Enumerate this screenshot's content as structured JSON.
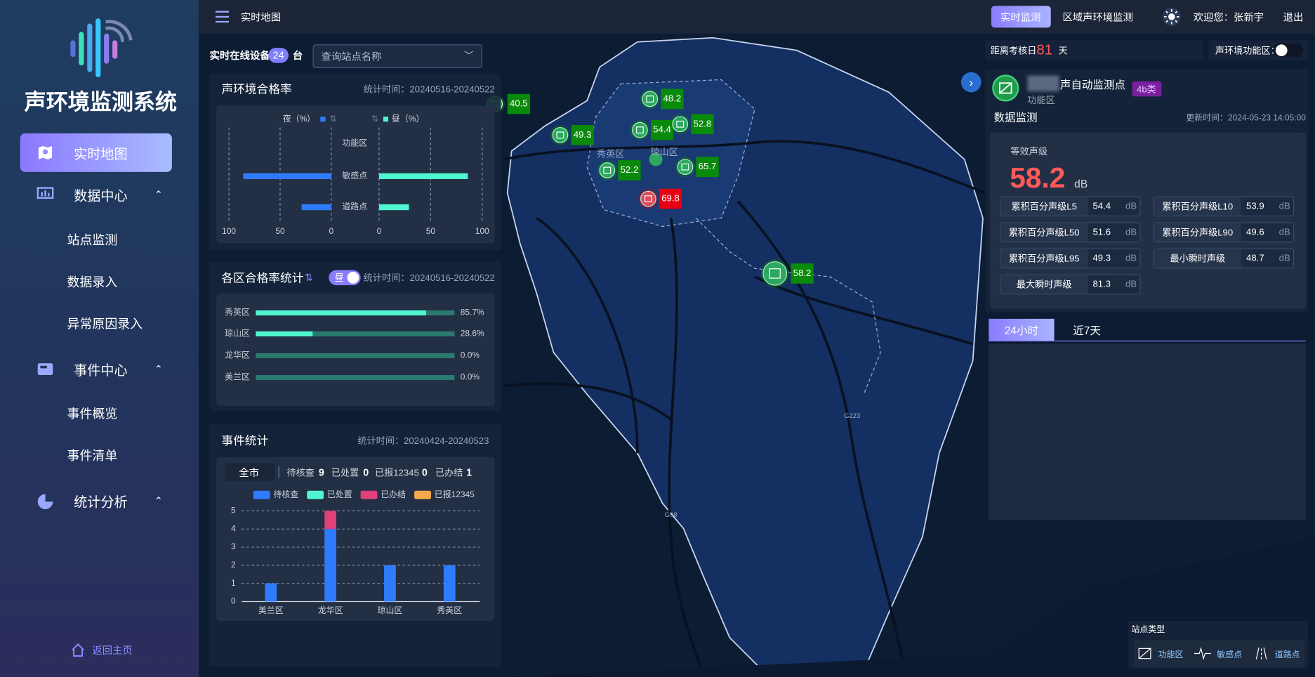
{
  "sidebar": {
    "title": "声环境监测系统",
    "menu": [
      "实时地图",
      "数据中心",
      "站点监测",
      "数据录入",
      "异常原因录入",
      "事件中心",
      "事件概览",
      "事件清单",
      "统计分析"
    ],
    "footer": "返回主页"
  },
  "topbar": {
    "page": "实时地图",
    "tabs": [
      "实时监测",
      "区域声环境监测"
    ],
    "welcome": "欢迎您：张新宇",
    "logout": "退出"
  },
  "online": {
    "label": "实时在线设备",
    "count": 24,
    "unit": "台",
    "search_placeholder": "查询站点名称"
  },
  "qualification_rate": {
    "title": "声环境合格率",
    "time": "统计时间：20240516-20240522",
    "chart": {
      "type": "bar",
      "orientation": "butterfly",
      "categories": [
        "功能区",
        "敏感点",
        "道路点"
      ],
      "series": [
        {
          "name": "夜（%）",
          "color": "#2f7bff",
          "values": [
            0,
            86,
            29
          ]
        },
        {
          "name": "昼（%）",
          "color": "#4ff5d0",
          "values": [
            0,
            86,
            29
          ]
        }
      ],
      "xlim": [
        0,
        100
      ],
      "xticks": [
        0,
        50,
        100
      ]
    }
  },
  "district_rate": {
    "title": "各区合格率统计",
    "toggle": "昼",
    "time": "统计时间：20240516-20240522",
    "chart": {
      "type": "bar",
      "orientation": "horizontal",
      "categories": [
        "秀英区",
        "琼山区",
        "龙华区",
        "美兰区"
      ],
      "values": [
        85.7,
        28.6,
        0,
        0
      ],
      "value_labels": [
        "85.7%",
        "28.6%",
        "0.0%",
        "0.0%"
      ],
      "color": "#4ff5d0",
      "track_color": "#2a7a70",
      "xlim": [
        0,
        100
      ]
    }
  },
  "events": {
    "title": "事件统计",
    "time": "统计时间：20240424-20240523",
    "scope": "全市",
    "summary": [
      {
        "label": "待核查",
        "value": 9
      },
      {
        "label": "已处置",
        "value": 0
      },
      {
        "label": "已报12345",
        "value": 0
      },
      {
        "label": "已办结",
        "value": 1
      }
    ],
    "chart": {
      "type": "stacked_bar",
      "categories": [
        "美兰区",
        "龙华区",
        "琼山区",
        "秀英区"
      ],
      "series": [
        {
          "name": "待核查",
          "color": "#2f7bff",
          "values": [
            1,
            4,
            2,
            2
          ]
        },
        {
          "name": "已处置",
          "color": "#4ff5d0",
          "values": [
            0,
            0,
            0,
            0
          ]
        },
        {
          "name": "已办结",
          "color": "#e0407a",
          "values": [
            0,
            1,
            0,
            0
          ]
        },
        {
          "name": "已报12345",
          "color": "#f5a84a",
          "values": [
            0,
            0,
            0,
            0
          ]
        }
      ],
      "ylim": [
        0,
        5
      ],
      "yticks": [
        0,
        1,
        2,
        3,
        4,
        5
      ],
      "grid": true
    }
  },
  "map": {
    "stations": [
      {
        "value": 40.5,
        "color": "#0a8a0a"
      },
      {
        "value": 48.2,
        "color": "#0a8a0a"
      },
      {
        "value": 49.3,
        "color": "#0a8a0a"
      },
      {
        "value": 54.4,
        "color": "#0a8a0a"
      },
      {
        "value": 52.8,
        "color": "#0a8a0a"
      },
      {
        "value": 52.2,
        "color": "#0a8a0a"
      },
      {
        "value": 65.7,
        "color": "#0a8a0a"
      },
      {
        "value": 69.8,
        "color": "#e60012"
      },
      {
        "value": 58.2,
        "color": "#0a8a0a"
      }
    ],
    "labels": [
      "秀英区",
      "琼山区",
      "G223",
      "G98"
    ]
  },
  "right_panel": {
    "countdown": {
      "label": "距离考核日",
      "days": 81,
      "unit": "天"
    },
    "function_zone_toggle": "声环境功能区：",
    "station": {
      "name": "声自动监测点",
      "badge": "4b类",
      "type": "功能区",
      "section": "数据监测",
      "update_time": "更新时间：2024-05-23 14:05:00",
      "leq_label": "等效声级",
      "leq": 58.2,
      "unit": "dB",
      "metrics": [
        {
          "label": "累积百分声级L5",
          "value": 54.4
        },
        {
          "label": "累积百分声级L10",
          "value": 53.9
        },
        {
          "label": "累积百分声级L50",
          "value": 51.6
        },
        {
          "label": "累积百分声级L90",
          "value": 49.6
        },
        {
          "label": "累积百分声级L95",
          "value": 49.3
        },
        {
          "label": "最小瞬时声级",
          "value": 48.7
        },
        {
          "label": "最大瞬时声级",
          "value": 81.3
        }
      ]
    },
    "tabs": [
      "24小时",
      "近7天"
    ]
  },
  "legend": {
    "title": "站点类型",
    "items": [
      "功能区",
      "敏感点",
      "道路点"
    ]
  }
}
